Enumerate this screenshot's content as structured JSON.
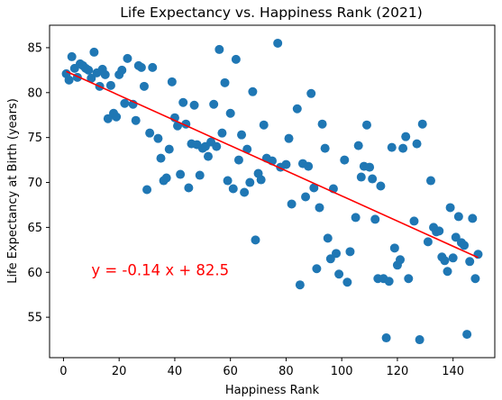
{
  "chart_data": {
    "type": "scatter",
    "title": "Life Expectancy vs. Happiness Rank (2021)",
    "xlabel": "Happiness Rank",
    "ylabel": "Life Expectancy at Birth (years)",
    "xlim": [
      -5,
      155
    ],
    "ylim": [
      50.5,
      87.5
    ],
    "xticks": [
      0,
      20,
      40,
      60,
      80,
      100,
      120,
      140
    ],
    "yticks": [
      55,
      60,
      65,
      70,
      75,
      80,
      85
    ],
    "grid": false,
    "point_color": "#1f77b4",
    "regression": {
      "slope": -0.14,
      "intercept": 82.5,
      "x_range": [
        1,
        149
      ],
      "color": "#ff0000",
      "equation_label": "y = -0.14 x + 82.5",
      "label_anchor": [
        10,
        60.2
      ]
    },
    "points": [
      [
        1,
        82.1
      ],
      [
        2,
        81.4
      ],
      [
        3,
        84.0
      ],
      [
        4,
        82.7
      ],
      [
        5,
        81.7
      ],
      [
        6,
        83.2
      ],
      [
        7,
        83.0
      ],
      [
        8,
        82.7
      ],
      [
        9,
        82.5
      ],
      [
        10,
        81.6
      ],
      [
        11,
        84.5
      ],
      [
        12,
        82.2
      ],
      [
        13,
        80.7
      ],
      [
        14,
        82.6
      ],
      [
        15,
        82.0
      ],
      [
        16,
        77.1
      ],
      [
        17,
        80.8
      ],
      [
        18,
        77.7
      ],
      [
        19,
        77.3
      ],
      [
        20,
        82.0
      ],
      [
        21,
        82.5
      ],
      [
        22,
        78.8
      ],
      [
        23,
        83.8
      ],
      [
        25,
        78.7
      ],
      [
        26,
        76.9
      ],
      [
        27,
        83.0
      ],
      [
        28,
        82.8
      ],
      [
        29,
        80.7
      ],
      [
        30,
        69.2
      ],
      [
        31,
        75.5
      ],
      [
        32,
        82.8
      ],
      [
        34,
        74.9
      ],
      [
        35,
        72.7
      ],
      [
        36,
        70.2
      ],
      [
        37,
        70.5
      ],
      [
        38,
        73.7
      ],
      [
        39,
        81.2
      ],
      [
        40,
        77.2
      ],
      [
        41,
        76.3
      ],
      [
        42,
        70.9
      ],
      [
        43,
        78.9
      ],
      [
        44,
        76.5
      ],
      [
        45,
        69.4
      ],
      [
        46,
        74.3
      ],
      [
        47,
        78.6
      ],
      [
        48,
        74.2
      ],
      [
        49,
        70.8
      ],
      [
        50,
        73.8
      ],
      [
        51,
        74.0
      ],
      [
        52,
        72.9
      ],
      [
        53,
        74.5
      ],
      [
        54,
        78.7
      ],
      [
        55,
        74.0
      ],
      [
        56,
        84.8
      ],
      [
        57,
        75.5
      ],
      [
        58,
        81.1
      ],
      [
        59,
        70.2
      ],
      [
        60,
        77.7
      ],
      [
        61,
        69.3
      ],
      [
        62,
        83.7
      ],
      [
        63,
        72.5
      ],
      [
        64,
        75.3
      ],
      [
        65,
        68.9
      ],
      [
        66,
        73.7
      ],
      [
        67,
        70.0
      ],
      [
        68,
        80.1
      ],
      [
        69,
        63.6
      ],
      [
        70,
        71.0
      ],
      [
        71,
        70.3
      ],
      [
        72,
        76.4
      ],
      [
        73,
        72.7
      ],
      [
        75,
        72.4
      ],
      [
        77,
        85.5
      ],
      [
        78,
        71.7
      ],
      [
        80,
        72.0
      ],
      [
        81,
        74.9
      ],
      [
        82,
        67.6
      ],
      [
        84,
        78.2
      ],
      [
        85,
        58.6
      ],
      [
        86,
        72.1
      ],
      [
        87,
        68.4
      ],
      [
        88,
        71.8
      ],
      [
        89,
        79.9
      ],
      [
        90,
        69.4
      ],
      [
        91,
        60.4
      ],
      [
        92,
        67.2
      ],
      [
        93,
        76.5
      ],
      [
        94,
        73.8
      ],
      [
        95,
        63.8
      ],
      [
        96,
        61.5
      ],
      [
        97,
        69.3
      ],
      [
        98,
        62.1
      ],
      [
        99,
        59.8
      ],
      [
        101,
        72.5
      ],
      [
        102,
        58.9
      ],
      [
        103,
        62.3
      ],
      [
        105,
        66.1
      ],
      [
        106,
        74.1
      ],
      [
        107,
        70.6
      ],
      [
        108,
        71.8
      ],
      [
        109,
        76.4
      ],
      [
        110,
        71.7
      ],
      [
        111,
        70.4
      ],
      [
        112,
        65.9
      ],
      [
        113,
        59.3
      ],
      [
        114,
        69.6
      ],
      [
        115,
        59.3
      ],
      [
        116,
        52.7
      ],
      [
        117,
        59.0
      ],
      [
        118,
        73.9
      ],
      [
        119,
        62.7
      ],
      [
        120,
        60.8
      ],
      [
        121,
        61.4
      ],
      [
        122,
        73.8
      ],
      [
        123,
        75.1
      ],
      [
        124,
        59.3
      ],
      [
        126,
        65.7
      ],
      [
        127,
        74.3
      ],
      [
        128,
        52.5
      ],
      [
        129,
        76.5
      ],
      [
        131,
        63.4
      ],
      [
        132,
        70.2
      ],
      [
        133,
        65.0
      ],
      [
        134,
        64.5
      ],
      [
        135,
        64.6
      ],
      [
        136,
        61.7
      ],
      [
        137,
        61.3
      ],
      [
        138,
        60.1
      ],
      [
        139,
        67.2
      ],
      [
        140,
        61.6
      ],
      [
        141,
        63.9
      ],
      [
        142,
        66.2
      ],
      [
        143,
        63.3
      ],
      [
        144,
        63.0
      ],
      [
        145,
        53.1
      ],
      [
        146,
        61.2
      ],
      [
        147,
        66.0
      ],
      [
        148,
        59.3
      ],
      [
        149,
        62.0
      ]
    ]
  }
}
